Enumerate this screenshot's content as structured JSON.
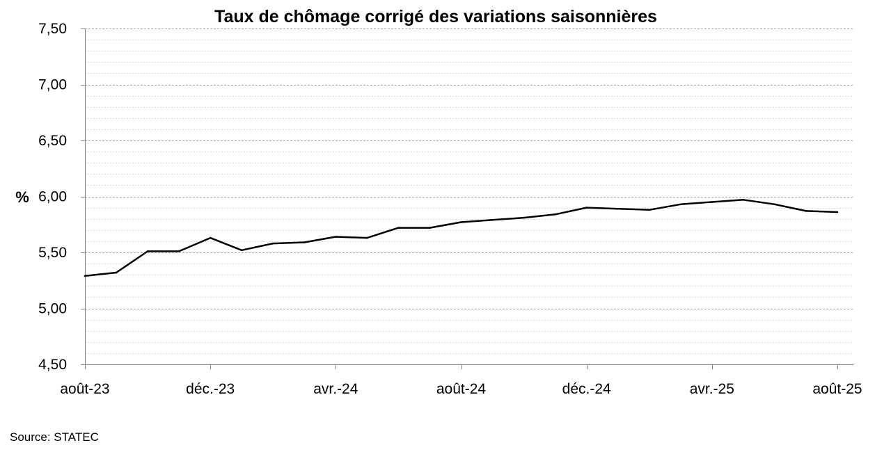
{
  "chart_data": {
    "type": "line",
    "title": "Taux de chômage corrigé des variations saisonnières",
    "ylabel": "%",
    "xlabel": "",
    "ylim": [
      4.5,
      7.5
    ],
    "yticks": [
      "4,50",
      "5,00",
      "5,50",
      "6,00",
      "6,50",
      "7,00",
      "7,50"
    ],
    "yticks_values": [
      4.5,
      5.0,
      5.5,
      6.0,
      6.5,
      7.0,
      7.5
    ],
    "minor_gridline_step": 0.1,
    "x": [
      "2023-08",
      "2023-09",
      "2023-10",
      "2023-11",
      "2023-12",
      "2024-01",
      "2024-02",
      "2024-03",
      "2024-04",
      "2024-05",
      "2024-06",
      "2024-07",
      "2024-08",
      "2024-09",
      "2024-10",
      "2024-11",
      "2024-12",
      "2025-01",
      "2025-02",
      "2025-03",
      "2025-04",
      "2025-05",
      "2025-06",
      "2025-07",
      "2025-08"
    ],
    "xtick_labels": [
      "août-23",
      "déc.-23",
      "avr.-24",
      "août-24",
      "déc.-24",
      "avr.-25",
      "août-25"
    ],
    "series": [
      {
        "values": [
          5.29,
          5.32,
          5.51,
          5.51,
          5.63,
          5.52,
          5.58,
          5.59,
          5.64,
          5.63,
          5.72,
          5.72,
          5.77,
          5.79,
          5.81,
          5.84,
          5.9,
          5.89,
          5.88,
          5.93,
          5.95,
          5.97,
          5.93,
          5.87,
          5.86
        ],
        "color": "#000000"
      }
    ],
    "grid": "dashed horizontal major and minor lines",
    "legend": "none"
  },
  "source": "Source: STATEC"
}
